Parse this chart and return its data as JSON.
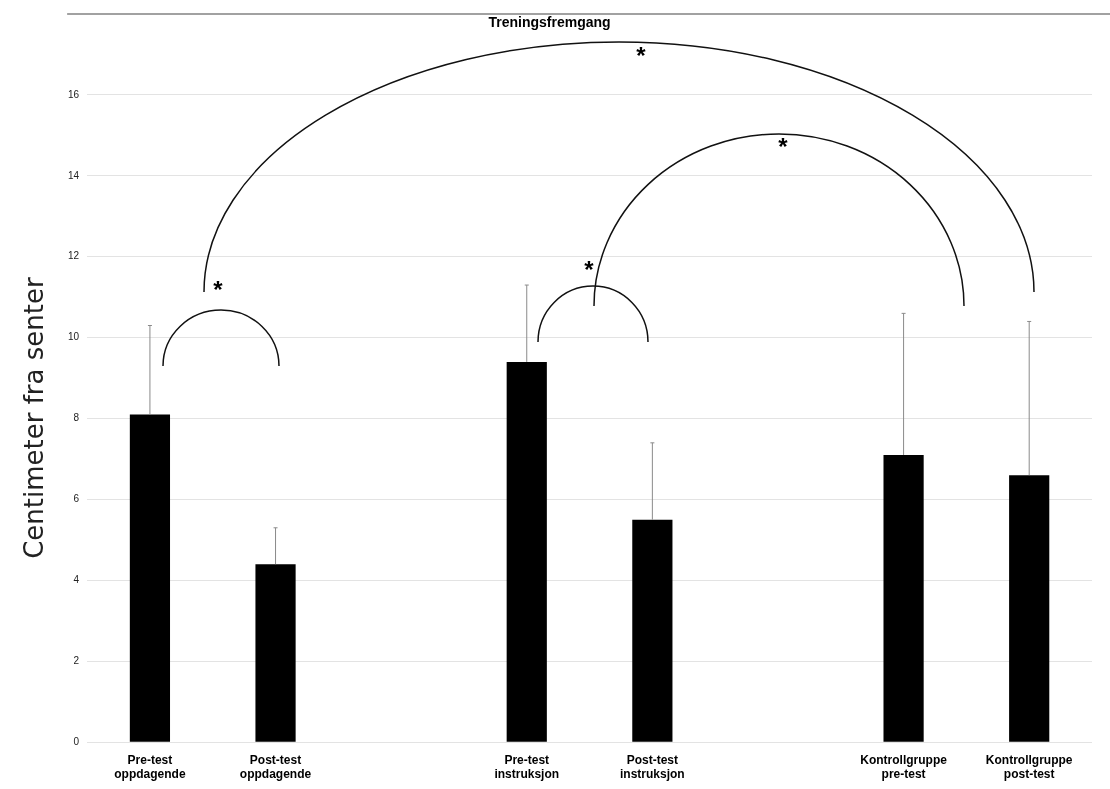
{
  "chart_data": {
    "type": "bar",
    "title": "Treningsfremgang",
    "ylabel": "Centimeter fra senter",
    "categories": [
      "Pre-test oppdagende",
      "Post-test oppdagende",
      null,
      "Pre-test instruksjon",
      "Post-test instruksjon",
      null,
      "Kontrollgruppe pre-test",
      "Kontrollgruppe post-test"
    ],
    "values": [
      8.1,
      4.4,
      null,
      9.4,
      5.5,
      null,
      7.1,
      6.6
    ],
    "errors": [
      [
        8.1,
        10.3
      ],
      [
        4.4,
        5.3
      ],
      null,
      [
        9.4,
        11.3
      ],
      [
        5.5,
        7.4
      ],
      null,
      [
        7.1,
        10.6
      ],
      [
        6.6,
        10.4
      ]
    ],
    "color": "#000000",
    "ylim": [
      0,
      18
    ],
    "yticks": [
      0,
      2,
      4,
      6,
      8,
      10,
      12,
      14,
      16
    ],
    "grid": "y",
    "annotations": [
      "*",
      "*",
      "*",
      "*"
    ]
  }
}
